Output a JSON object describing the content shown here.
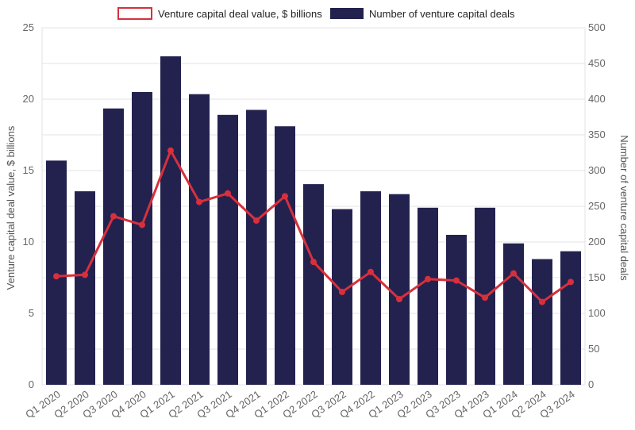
{
  "chart_data": {
    "type": "bar",
    "categories": [
      "Q1 2020",
      "Q2 2020",
      "Q3 2020",
      "Q4 2020",
      "Q1 2021",
      "Q2 2021",
      "Q3 2021",
      "Q4 2021",
      "Q1 2022",
      "Q2 2022",
      "Q3 2022",
      "Q4 2022",
      "Q1 2023",
      "Q2 2023",
      "Q3 2023",
      "Q4 2023",
      "Q1 2024",
      "Q2 2024",
      "Q3 2024"
    ],
    "series": [
      {
        "name": "Venture capital deal value, $ billions",
        "type": "line",
        "axis": "left",
        "color": "#d7303c",
        "values": [
          7.6,
          7.7,
          11.8,
          11.2,
          16.4,
          12.8,
          13.4,
          11.5,
          13.2,
          8.6,
          6.5,
          7.9,
          6.0,
          7.4,
          7.3,
          6.1,
          7.8,
          5.8,
          7.2
        ]
      },
      {
        "name": "Number of venture capital deals",
        "type": "bar",
        "axis": "right",
        "color": "#23224f",
        "values": [
          314,
          271,
          387,
          410,
          460,
          407,
          378,
          385,
          362,
          281,
          246,
          271,
          267,
          248,
          210,
          248,
          198,
          176,
          187
        ]
      }
    ],
    "left_axis": {
      "label": "Venture capital deal value, $ billions",
      "min": 0,
      "max": 25,
      "ticks": [
        "0",
        "5",
        "10",
        "15",
        "20",
        "25"
      ]
    },
    "right_axis": {
      "label": "Number of venture capital deals",
      "min": 0,
      "max": 500,
      "ticks": [
        "0",
        "50",
        "100",
        "150",
        "200",
        "250",
        "300",
        "350",
        "400",
        "450",
        "500"
      ]
    },
    "grid": true,
    "legend_position": "top"
  }
}
